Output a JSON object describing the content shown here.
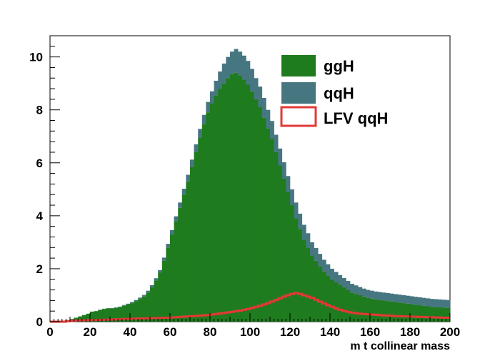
{
  "chart_data": {
    "type": "area",
    "title": "",
    "xlabel": "m t collinear mass",
    "ylabel": "",
    "xlim": [
      0,
      200
    ],
    "ylim": [
      0,
      10.8
    ],
    "x_ticks": [
      0,
      20,
      40,
      60,
      80,
      100,
      120,
      140,
      160,
      180,
      200
    ],
    "y_ticks": [
      0,
      2,
      4,
      6,
      8,
      10
    ],
    "grid": false,
    "legend_position": "top-right",
    "bin_width": 2,
    "stacked": true,
    "x": [
      1,
      3,
      5,
      7,
      9,
      11,
      13,
      15,
      17,
      19,
      21,
      23,
      25,
      27,
      29,
      31,
      33,
      35,
      37,
      39,
      41,
      43,
      45,
      47,
      49,
      51,
      53,
      55,
      57,
      59,
      61,
      63,
      65,
      67,
      69,
      71,
      73,
      75,
      77,
      79,
      81,
      83,
      85,
      87,
      89,
      91,
      93,
      95,
      97,
      99,
      101,
      103,
      105,
      107,
      109,
      111,
      113,
      115,
      117,
      119,
      121,
      123,
      125,
      127,
      129,
      131,
      133,
      135,
      137,
      139,
      141,
      143,
      145,
      147,
      149,
      151,
      153,
      155,
      157,
      159,
      161,
      163,
      165,
      167,
      169,
      171,
      173,
      175,
      177,
      179,
      181,
      183,
      185,
      187,
      189,
      191,
      193,
      195,
      197,
      199
    ],
    "series": [
      {
        "name": "ggH",
        "color": "#1e7b1e",
        "style": "filled",
        "values": [
          0.0,
          0.0,
          0.0,
          0.0,
          0.05,
          0.1,
          0.15,
          0.2,
          0.25,
          0.3,
          0.38,
          0.4,
          0.45,
          0.48,
          0.5,
          0.5,
          0.52,
          0.55,
          0.6,
          0.65,
          0.7,
          0.78,
          0.86,
          0.95,
          1.1,
          1.3,
          1.55,
          1.85,
          2.3,
          2.8,
          3.3,
          3.8,
          4.3,
          4.8,
          5.3,
          5.85,
          6.4,
          6.95,
          7.45,
          7.9,
          8.25,
          8.55,
          8.8,
          9.0,
          9.2,
          9.35,
          9.4,
          9.3,
          9.15,
          8.95,
          8.7,
          8.4,
          8.1,
          7.7,
          7.3,
          6.9,
          6.4,
          5.9,
          5.4,
          4.9,
          4.4,
          3.9,
          3.5,
          3.1,
          2.8,
          2.5,
          2.3,
          2.1,
          1.9,
          1.75,
          1.6,
          1.5,
          1.4,
          1.3,
          1.2,
          1.1,
          1.05,
          1.0,
          0.95,
          0.9,
          0.87,
          0.84,
          0.82,
          0.8,
          0.78,
          0.76,
          0.74,
          0.72,
          0.7,
          0.68,
          0.66,
          0.64,
          0.62,
          0.6,
          0.58,
          0.56,
          0.55,
          0.54,
          0.53,
          0.52
        ]
      },
      {
        "name": "qqH",
        "color": "#467680",
        "style": "filled",
        "values": [
          0.0,
          0.0,
          0.0,
          0.0,
          0.0,
          0.0,
          0.0,
          0.0,
          0.0,
          0.0,
          0.0,
          0.0,
          0.0,
          0.01,
          0.01,
          0.01,
          0.02,
          0.02,
          0.03,
          0.03,
          0.04,
          0.04,
          0.05,
          0.06,
          0.07,
          0.08,
          0.09,
          0.1,
          0.12,
          0.14,
          0.16,
          0.18,
          0.2,
          0.22,
          0.25,
          0.27,
          0.3,
          0.33,
          0.36,
          0.4,
          0.45,
          0.55,
          0.65,
          0.75,
          0.8,
          0.85,
          0.9,
          0.9,
          0.9,
          0.9,
          0.85,
          0.8,
          0.78,
          0.75,
          0.7,
          0.68,
          0.66,
          0.64,
          0.62,
          0.6,
          0.6,
          0.6,
          0.58,
          0.56,
          0.54,
          0.5,
          0.48,
          0.46,
          0.44,
          0.42,
          0.4,
          0.38,
          0.36,
          0.35,
          0.34,
          0.33,
          0.32,
          0.31,
          0.3,
          0.3,
          0.3,
          0.3,
          0.3,
          0.3,
          0.3,
          0.3,
          0.3,
          0.3,
          0.3,
          0.3,
          0.3,
          0.3,
          0.3,
          0.3,
          0.3,
          0.3,
          0.3,
          0.3,
          0.3,
          0.3
        ]
      },
      {
        "name": "LFV qqH",
        "color": "#e03a35",
        "style": "line",
        "values": [
          0.0,
          0.0,
          0.0,
          0.0,
          0.02,
          0.03,
          0.04,
          0.05,
          0.05,
          0.06,
          0.06,
          0.06,
          0.07,
          0.07,
          0.08,
          0.08,
          0.09,
          0.09,
          0.1,
          0.1,
          0.11,
          0.11,
          0.12,
          0.12,
          0.13,
          0.13,
          0.14,
          0.14,
          0.15,
          0.15,
          0.16,
          0.17,
          0.18,
          0.19,
          0.2,
          0.21,
          0.22,
          0.23,
          0.24,
          0.25,
          0.27,
          0.29,
          0.31,
          0.33,
          0.35,
          0.37,
          0.39,
          0.42,
          0.45,
          0.48,
          0.52,
          0.56,
          0.6,
          0.65,
          0.7,
          0.76,
          0.82,
          0.88,
          0.95,
          1.0,
          1.05,
          1.08,
          1.05,
          1.0,
          0.95,
          0.9,
          0.83,
          0.76,
          0.69,
          0.62,
          0.56,
          0.5,
          0.45,
          0.41,
          0.37,
          0.34,
          0.32,
          0.3,
          0.29,
          0.28,
          0.27,
          0.26,
          0.25,
          0.24,
          0.23,
          0.22,
          0.21,
          0.21,
          0.2,
          0.2,
          0.19,
          0.19,
          0.18,
          0.18,
          0.17,
          0.17,
          0.16,
          0.16,
          0.15,
          0.15
        ]
      }
    ]
  }
}
